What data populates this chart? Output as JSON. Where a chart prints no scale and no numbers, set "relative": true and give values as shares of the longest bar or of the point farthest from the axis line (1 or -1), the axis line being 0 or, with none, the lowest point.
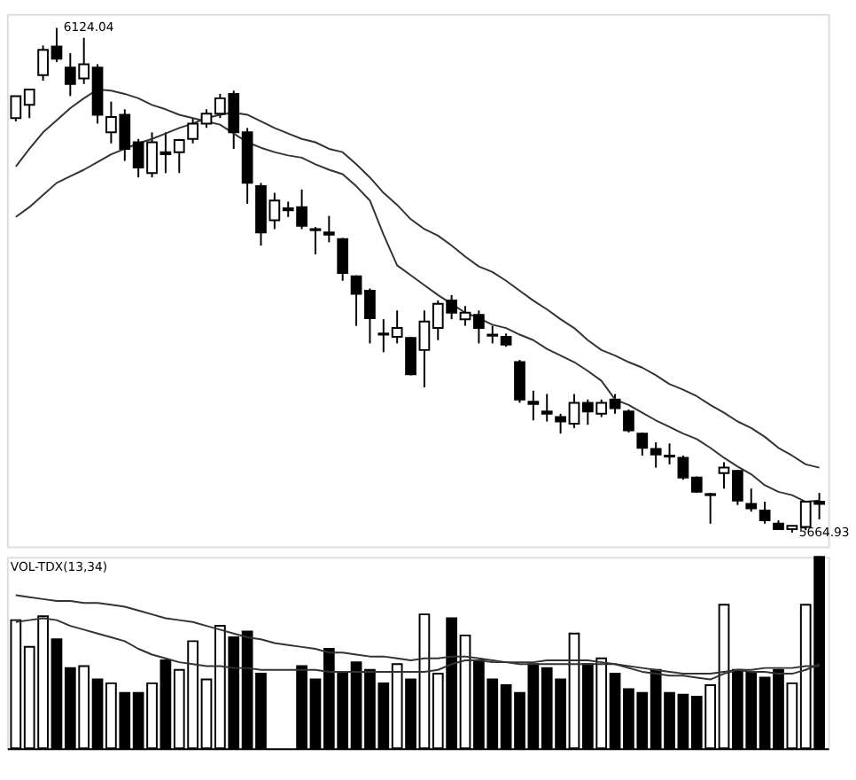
{
  "chart_data": [
    {
      "type": "candlestick",
      "tick_labels": false,
      "categories": [
        null,
        null,
        null,
        null,
        null,
        null,
        null,
        null,
        null,
        null,
        null,
        null,
        null,
        null,
        null,
        null,
        null,
        null,
        null,
        null,
        null,
        null,
        null,
        null,
        null,
        null,
        null,
        null,
        null,
        null,
        null,
        null,
        null,
        null,
        null,
        null,
        null,
        null,
        null,
        null,
        null,
        null,
        null,
        null,
        null,
        null,
        null,
        null,
        null,
        null,
        null,
        null,
        null,
        null,
        null,
        null,
        null,
        null,
        null,
        null
      ],
      "ohlc": [
        [
          6042,
          6062,
          6039,
          6062
        ],
        [
          6054,
          6068,
          6042,
          6068
        ],
        [
          6081,
          6108,
          6076,
          6104
        ],
        [
          6107,
          6124.04,
          6093,
          6096
        ],
        [
          6088,
          6101,
          6062,
          6073
        ],
        [
          6078,
          6115,
          6073,
          6091
        ],
        [
          6088,
          6091,
          6037,
          6045
        ],
        [
          6029,
          6057,
          6019,
          6043
        ],
        [
          6045,
          6050,
          6003,
          6014
        ],
        [
          6020,
          6023,
          5988,
          5997
        ],
        [
          5992,
          6029,
          5988,
          6020
        ],
        [
          6011,
          6029,
          5992,
          6009
        ],
        [
          6011,
          6023,
          5992,
          6022
        ],
        [
          6023,
          6042,
          6019,
          6037
        ],
        [
          6037,
          6050,
          6033,
          6046
        ],
        [
          6046,
          6064,
          6042,
          6060
        ],
        [
          6064,
          6067,
          6014,
          6029
        ],
        [
          6029,
          6033,
          5964,
          5983
        ],
        [
          5980,
          5983,
          5926,
          5938
        ],
        [
          5949,
          5974,
          5941,
          5967
        ],
        [
          5960,
          5966,
          5952,
          5958
        ],
        [
          5961,
          5977,
          5941,
          5944
        ],
        [
          5941,
          5943,
          5918,
          5940
        ],
        [
          5938,
          5953,
          5929,
          5936
        ],
        [
          5932,
          5933,
          5894,
          5901
        ],
        [
          5898,
          5899,
          5853,
          5882
        ],
        [
          5885,
          5887,
          5837,
          5860
        ],
        [
          5846,
          5859,
          5829,
          5845
        ],
        [
          5843,
          5867,
          5837,
          5851
        ],
        [
          5842,
          5843,
          5808,
          5809
        ],
        [
          5831,
          5867,
          5797,
          5857
        ],
        [
          5851,
          5876,
          5840,
          5873
        ],
        [
          5876,
          5881,
          5859,
          5865
        ],
        [
          5859,
          5871,
          5853,
          5865
        ],
        [
          5863,
          5867,
          5837,
          5851
        ],
        [
          5845,
          5853,
          5837,
          5844
        ],
        [
          5843,
          5846,
          5834,
          5836
        ],
        [
          5820,
          5822,
          5783,
          5786
        ],
        [
          5784,
          5794,
          5767,
          5782
        ],
        [
          5775,
          5791,
          5766,
          5773
        ],
        [
          5770,
          5773,
          5755,
          5766
        ],
        [
          5764,
          5791,
          5760,
          5783
        ],
        [
          5783,
          5786,
          5763,
          5775
        ],
        [
          5773,
          5786,
          5770,
          5783
        ],
        [
          5786,
          5791,
          5773,
          5778
        ],
        [
          5775,
          5777,
          5756,
          5758
        ],
        [
          5755,
          5756,
          5735,
          5742
        ],
        [
          5741,
          5747,
          5724,
          5736
        ],
        [
          5735,
          5746,
          5727,
          5734
        ],
        [
          5733,
          5735,
          5713,
          5715
        ],
        [
          5715,
          5716,
          5701,
          5702
        ],
        [
          5699,
          5701,
          5673,
          5700
        ],
        [
          5719,
          5729,
          5705,
          5724
        ],
        [
          5721,
          5722,
          5690,
          5694
        ],
        [
          5691,
          5705,
          5684,
          5687
        ],
        [
          5685,
          5693,
          5673,
          5676
        ],
        [
          5673,
          5676,
          5668,
          5668
        ],
        [
          5668,
          5671,
          5664.93,
          5671
        ],
        [
          5670,
          5693,
          5667,
          5693
        ],
        [
          5693,
          5701,
          5677,
          5691
        ]
      ],
      "series": [
        {
          "type": "line",
          "color": "#333333",
          "values": [
            5998,
            6014,
            6029,
            6040,
            6051,
            6060,
            6068,
            6067,
            6064,
            6060,
            6054,
            6050,
            6045,
            6042,
            6039,
            6036,
            6028,
            6020,
            6015,
            6011,
            6008,
            6006,
            6000,
            5995,
            5991,
            5980,
            5967,
            5936,
            5908,
            5899,
            5890,
            5881,
            5873,
            5865,
            5860,
            5854,
            5851,
            5845,
            5840,
            5832,
            5826,
            5820,
            5812,
            5803,
            5786,
            5781,
            5774,
            5767,
            5761,
            5755,
            5750,
            5742,
            5733,
            5725,
            5718,
            5708,
            5702,
            5699,
            5693,
            5694
          ]
        },
        {
          "type": "line",
          "color": "#333333",
          "values": [
            5952,
            5961,
            5972,
            5983,
            5989,
            5995,
            6002,
            6009,
            6014,
            6019,
            6023,
            6028,
            6033,
            6037,
            6042,
            6045,
            6047,
            6045,
            6039,
            6033,
            6028,
            6023,
            6020,
            6014,
            6011,
            6000,
            5988,
            5974,
            5963,
            5950,
            5941,
            5935,
            5926,
            5916,
            5907,
            5902,
            5894,
            5885,
            5876,
            5868,
            5859,
            5851,
            5840,
            5831,
            5826,
            5820,
            5815,
            5808,
            5800,
            5795,
            5789,
            5781,
            5774,
            5766,
            5760,
            5752,
            5742,
            5735,
            5727,
            5724
          ]
        }
      ],
      "annotations": [
        "6124.04",
        "5664.93"
      ]
    },
    {
      "type": "bar",
      "relative": true,
      "title": "VOL-TDX(13,34)",
      "categories": [
        null,
        null,
        null,
        null,
        null,
        null,
        null,
        null,
        null,
        null,
        null,
        null,
        null,
        null,
        null,
        null,
        null,
        null,
        null,
        null,
        null,
        null,
        null,
        null,
        null,
        null,
        null,
        null,
        null,
        null,
        null,
        null,
        null,
        null,
        null,
        null,
        null,
        null,
        null,
        null,
        null,
        null,
        null,
        null,
        null,
        null,
        null,
        null,
        null,
        null,
        null,
        null,
        null,
        null,
        null,
        null,
        null,
        null,
        null,
        null
      ],
      "series": [
        {
          "type": "bar",
          "values": [
            0.67,
            0.53,
            0.69,
            0.57,
            0.42,
            0.43,
            0.36,
            0.34,
            0.29,
            0.29,
            0.34,
            0.46,
            0.41,
            0.56,
            0.36,
            0.64,
            0.58,
            0.61,
            0.39,
            null,
            null,
            0.43,
            0.36,
            0.52,
            0.39,
            0.45,
            0.41,
            0.34,
            0.44,
            0.36,
            0.7,
            0.39,
            0.68,
            0.59,
            0.46,
            0.36,
            0.33,
            0.29,
            0.44,
            0.42,
            0.36,
            0.6,
            0.44,
            0.47,
            0.39,
            0.31,
            0.29,
            0.41,
            0.29,
            0.28,
            0.27,
            0.33,
            0.75,
            0.41,
            0.4,
            0.37,
            0.41,
            0.34,
            0.75,
            1
          ],
          "colors": [
            "#ffffff",
            "#ffffff",
            "#ffffff",
            "#000000",
            "#000000",
            "#ffffff",
            "#000000",
            "#ffffff",
            "#000000",
            "#000000",
            "#ffffff",
            "#000000",
            "#ffffff",
            "#ffffff",
            "#ffffff",
            "#ffffff",
            "#000000",
            "#000000",
            "#000000",
            "#ffffff",
            "#000000",
            "#000000",
            "#000000",
            "#000000",
            "#000000",
            "#000000",
            "#000000",
            "#000000",
            "#ffffff",
            "#000000",
            "#ffffff",
            "#ffffff",
            "#000000",
            "#ffffff",
            "#000000",
            "#000000",
            "#000000",
            "#000000",
            "#000000",
            "#000000",
            "#000000",
            "#ffffff",
            "#000000",
            "#ffffff",
            "#000000",
            "#000000",
            "#000000",
            "#000000",
            "#000000",
            "#000000",
            "#000000",
            "#ffffff",
            "#ffffff",
            "#000000",
            "#000000",
            "#000000",
            "#000000",
            "#ffffff",
            "#ffffff",
            "#000000"
          ]
        },
        {
          "type": "line",
          "color": "#333333",
          "values": [
            0.8,
            0.79,
            0.78,
            0.77,
            0.77,
            0.76,
            0.76,
            0.75,
            0.74,
            0.72,
            0.7,
            0.68,
            0.67,
            0.66,
            0.64,
            0.62,
            0.6,
            0.58,
            0.57,
            0.55,
            0.54,
            0.53,
            0.52,
            0.5,
            0.5,
            0.49,
            0.48,
            0.48,
            0.47,
            0.46,
            0.47,
            0.47,
            0.48,
            0.48,
            0.47,
            0.46,
            0.45,
            0.44,
            0.44,
            0.44,
            0.44,
            0.44,
            0.44,
            0.44,
            0.44,
            0.43,
            0.42,
            0.41,
            0.4,
            0.39,
            0.39,
            0.39,
            0.4,
            0.41,
            0.41,
            0.42,
            0.42,
            0.42,
            0.43,
            0.43
          ]
        },
        {
          "type": "line",
          "color": "#333333",
          "values": [
            0.66,
            0.67,
            0.68,
            0.67,
            0.64,
            0.62,
            0.6,
            0.58,
            0.56,
            0.52,
            0.49,
            0.47,
            0.45,
            0.44,
            0.43,
            0.43,
            0.42,
            0.42,
            0.41,
            0.41,
            0.41,
            0.41,
            0.41,
            0.4,
            0.4,
            0.4,
            0.4,
            0.4,
            0.4,
            0.4,
            0.4,
            0.41,
            0.44,
            0.46,
            0.46,
            0.45,
            0.45,
            0.45,
            0.45,
            0.46,
            0.46,
            0.46,
            0.46,
            0.45,
            0.44,
            0.42,
            0.4,
            0.39,
            0.38,
            0.38,
            0.37,
            0.36,
            0.39,
            0.41,
            0.4,
            0.4,
            0.39,
            0.39,
            0.41,
            0.44
          ]
        }
      ]
    }
  ]
}
